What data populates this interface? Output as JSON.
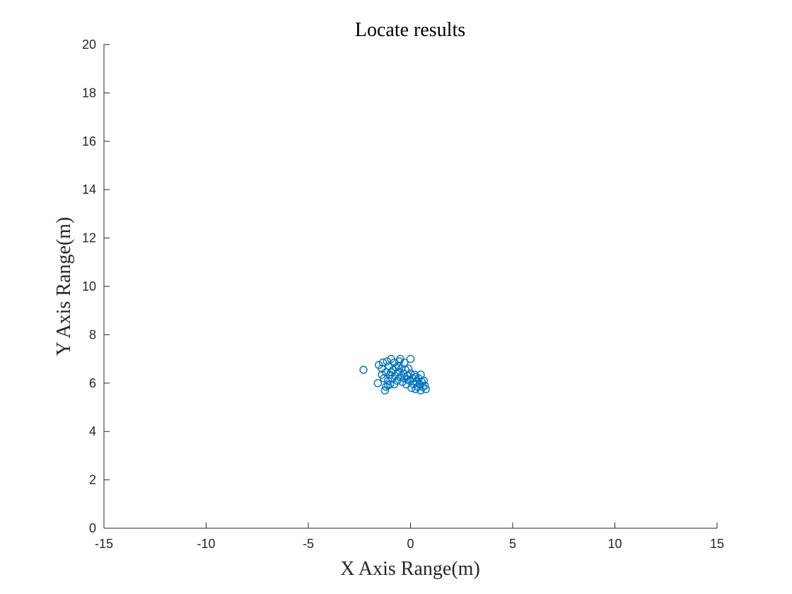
{
  "chart_data": {
    "type": "scatter",
    "title": "Locate results",
    "xlabel": "X Axis Range(m)",
    "ylabel": "Y Axis Range(m)",
    "xlim": [
      -15,
      15
    ],
    "ylim": [
      0,
      20
    ],
    "xticks": [
      -15,
      -10,
      -5,
      0,
      5,
      10,
      15
    ],
    "yticks": [
      0,
      2,
      4,
      6,
      8,
      10,
      12,
      14,
      16,
      18,
      20
    ],
    "grid": false,
    "legend": "none",
    "marker": "circle-open",
    "color": "#0072BD",
    "series": [
      {
        "points": [
          [
            -2.3,
            6.55
          ],
          [
            -1.6,
            6.0
          ],
          [
            -1.55,
            6.75
          ],
          [
            -1.4,
            6.6
          ],
          [
            -1.35,
            6.85
          ],
          [
            -1.3,
            6.2
          ],
          [
            -1.25,
            5.7
          ],
          [
            -1.2,
            5.85
          ],
          [
            -1.2,
            6.45
          ],
          [
            -1.15,
            6.9
          ],
          [
            -1.1,
            6.1
          ],
          [
            -1.05,
            6.7
          ],
          [
            -1.0,
            5.95
          ],
          [
            -1.0,
            6.35
          ],
          [
            -0.95,
            7.0
          ],
          [
            -0.9,
            6.2
          ],
          [
            -0.85,
            6.55
          ],
          [
            -0.8,
            6.85
          ],
          [
            -0.8,
            5.95
          ],
          [
            -0.75,
            6.3
          ],
          [
            -0.7,
            6.65
          ],
          [
            -0.65,
            6.1
          ],
          [
            -0.6,
            6.45
          ],
          [
            -0.55,
            6.9
          ],
          [
            -0.5,
            6.25
          ],
          [
            -0.5,
            7.0
          ],
          [
            -0.45,
            6.6
          ],
          [
            -0.4,
            6.05
          ],
          [
            -0.35,
            6.4
          ],
          [
            -0.3,
            6.85
          ],
          [
            -0.3,
            6.2
          ],
          [
            -0.25,
            6.55
          ],
          [
            -0.2,
            5.95
          ],
          [
            -0.15,
            6.3
          ],
          [
            -0.1,
            6.6
          ],
          [
            -0.05,
            6.1
          ],
          [
            0.0,
            7.0
          ],
          [
            0.0,
            6.4
          ],
          [
            0.05,
            5.8
          ],
          [
            0.1,
            6.2
          ],
          [
            0.15,
            5.95
          ],
          [
            0.2,
            6.35
          ],
          [
            0.25,
            5.75
          ],
          [
            0.3,
            6.05
          ],
          [
            0.35,
            5.85
          ],
          [
            0.4,
            6.2
          ],
          [
            0.45,
            5.95
          ],
          [
            0.5,
            6.35
          ],
          [
            0.5,
            5.7
          ],
          [
            0.55,
            6.05
          ],
          [
            0.6,
            5.85
          ],
          [
            0.65,
            6.1
          ],
          [
            0.7,
            5.9
          ],
          [
            0.75,
            5.75
          ],
          [
            -1.4,
            6.35
          ],
          [
            -0.95,
            6.45
          ],
          [
            -0.6,
            6.7
          ],
          [
            -0.15,
            6.15
          ],
          [
            0.25,
            6.25
          ],
          [
            -1.1,
            5.9
          ]
        ]
      }
    ]
  }
}
